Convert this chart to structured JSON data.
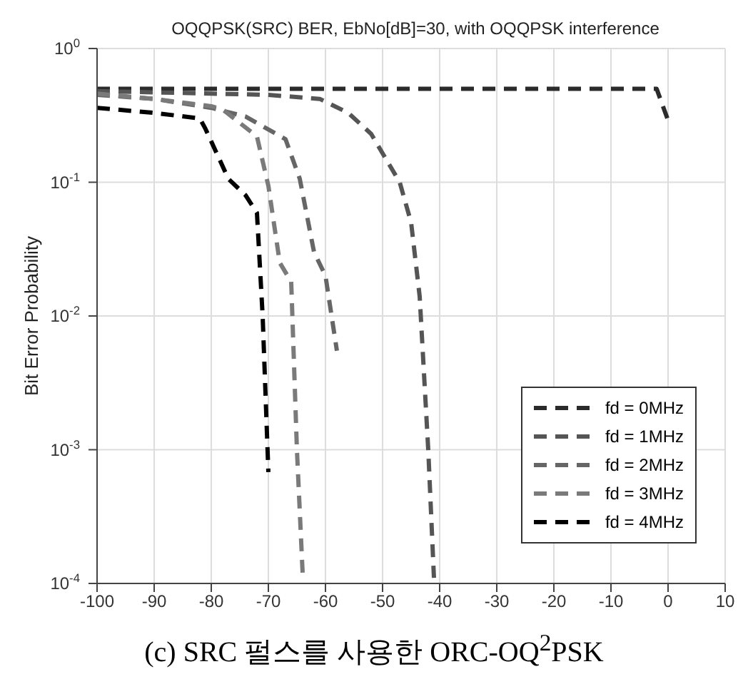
{
  "chart_data": {
    "type": "line",
    "title": "OQQPSK(SRC) BER, EbNo[dB]=30, with OQQPSK interference",
    "ylabel": "Bit Error Probability",
    "annotations": [
      "(c) SRC 펄스를 사용한 ORC-OQ$^{2}$PSK"
    ],
    "log": "y",
    "grid": true,
    "legend": "bottom right",
    "line_style": "dashed",
    "marker": "none",
    "xlim": [
      -100,
      10
    ],
    "xticks": [
      -100,
      -90,
      -80,
      -70,
      -60,
      -50,
      -40,
      -30,
      -20,
      -10,
      0,
      10
    ],
    "ylim": [
      0.0001,
      1
    ],
    "yticks": [
      {
        "value": 0.0001,
        "label": "10$^{-4}$"
      },
      {
        "value": 0.001,
        "label": "10$^{-3}$"
      },
      {
        "value": 0.01,
        "label": "10$^{-2}$"
      },
      {
        "value": 0.1,
        "label": "10$^{-1}$"
      },
      {
        "value": 1,
        "label": "10$^{0}$"
      }
    ],
    "series": [
      {
        "name": "fd = 0MHz",
        "color": "#2b2b2b",
        "x": [
          -100,
          -90,
          -80,
          -70,
          -60,
          -50,
          -40,
          -30,
          -20,
          -10,
          -2,
          0
        ],
        "values": [
          0.5,
          0.5,
          0.5,
          0.5,
          0.5,
          0.5,
          0.5,
          0.5,
          0.5,
          0.5,
          0.5,
          0.29
        ]
      },
      {
        "name": "fd = 1MHz",
        "color": "#555555",
        "x": [
          -100,
          -90,
          -80,
          -70,
          -61,
          -56,
          -52,
          -47,
          -45,
          -43.5,
          -42,
          -41
        ],
        "values": [
          0.48,
          0.47,
          0.46,
          0.45,
          0.42,
          0.33,
          0.23,
          0.1,
          0.05,
          0.014,
          0.001,
          0.00011
        ]
      },
      {
        "name": "fd = 2MHz",
        "color": "#666666",
        "x": [
          -100,
          -90,
          -80,
          -74,
          -67,
          -64.5,
          -62,
          -60,
          -58
        ],
        "values": [
          0.45,
          0.42,
          0.36,
          0.31,
          0.21,
          0.106,
          0.03,
          0.02,
          0.0055
        ]
      },
      {
        "name": "fd = 3MHz",
        "color": "#7a7a7a",
        "x": [
          -100,
          -90,
          -80,
          -78,
          -72,
          -70,
          -68,
          -66,
          -65,
          -64
        ],
        "values": [
          0.46,
          0.42,
          0.37,
          0.35,
          0.22,
          0.094,
          0.025,
          0.018,
          0.001,
          0.00012
        ]
      },
      {
        "name": "fd = 4MHz",
        "color": "#000000",
        "x": [
          -100,
          -90,
          -82,
          -81,
          -77,
          -74,
          -72,
          -71,
          -70
        ],
        "values": [
          0.36,
          0.33,
          0.3,
          0.25,
          0.106,
          0.08,
          0.059,
          0.01,
          0.00068
        ]
      }
    ]
  }
}
